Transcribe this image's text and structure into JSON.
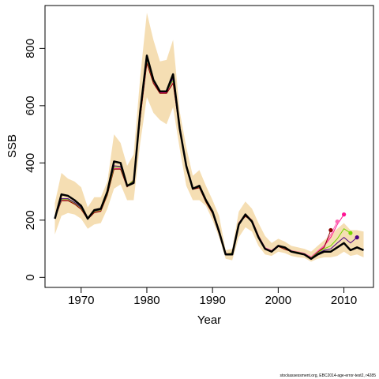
{
  "footer": "stockassessment.org, EBC2014-age-error-test2, r4285",
  "chart_data": {
    "type": "line",
    "title": "",
    "xlabel": "Year",
    "ylabel": "SSB",
    "xlim": [
      1964.5,
      2014.5
    ],
    "ylim": [
      -35,
      950
    ],
    "xticks": [
      1970,
      1980,
      1990,
      2000,
      2010
    ],
    "yticks": [
      0,
      200,
      400,
      600,
      800
    ],
    "grid": false,
    "legend": "none",
    "colors": {
      "ci_band": "#f5deb3",
      "main": "#000000",
      "retro": [
        "#ff1493",
        "#ff69b4",
        "#8b0000",
        "#76d700",
        "#4b0082"
      ]
    },
    "years": [
      1966,
      1967,
      1968,
      1969,
      1970,
      1971,
      1972,
      1973,
      1974,
      1975,
      1976,
      1977,
      1978,
      1979,
      1980,
      1981,
      1982,
      1983,
      1984,
      1985,
      1986,
      1987,
      1988,
      1989,
      1990,
      1991,
      1992,
      1993,
      1994,
      1995,
      1996,
      1997,
      1998,
      1999,
      2000,
      2001,
      2002,
      2003,
      2004,
      2005,
      2006,
      2007,
      2008,
      2009,
      2010,
      2011,
      2012,
      2013
    ],
    "confidence_band": {
      "lower": [
        150,
        215,
        225,
        220,
        205,
        170,
        185,
        190,
        240,
        310,
        325,
        270,
        270,
        470,
        630,
        575,
        550,
        535,
        595,
        450,
        320,
        270,
        270,
        250,
        200,
        140,
        65,
        60,
        140,
        175,
        160,
        110,
        80,
        75,
        90,
        85,
        75,
        70,
        68,
        55,
        65,
        70,
        70,
        75,
        90,
        75,
        80,
        70
      ],
      "upper": [
        260,
        365,
        345,
        335,
        315,
        245,
        280,
        280,
        335,
        500,
        470,
        390,
        430,
        700,
        925,
        830,
        755,
        760,
        830,
        580,
        455,
        355,
        375,
        320,
        270,
        215,
        95,
        100,
        230,
        265,
        240,
        190,
        145,
        120,
        135,
        125,
        110,
        105,
        100,
        90,
        110,
        130,
        150,
        170,
        190,
        165,
        165,
        160
      ]
    },
    "series": [
      {
        "role": "final",
        "color": "#000000",
        "values": [
          205,
          290,
          285,
          270,
          250,
          205,
          235,
          240,
          300,
          405,
          400,
          320,
          330,
          580,
          775,
          690,
          650,
          650,
          710,
          520,
          390,
          310,
          320,
          270,
          230,
          160,
          80,
          80,
          185,
          220,
          195,
          140,
          100,
          90,
          110,
          105,
          90,
          85,
          80,
          65,
          80,
          90,
          90,
          105,
          120,
          95,
          105,
          95
        ]
      },
      {
        "role": "retro",
        "color": "#ff1493",
        "end_year": 2010,
        "values": [
          208,
          270,
          270,
          258,
          240,
          205,
          228,
          233,
          290,
          380,
          380,
          318,
          340,
          560,
          750,
          680,
          645,
          645,
          680,
          520,
          385,
          310,
          315,
          265,
          225,
          155,
          82,
          85,
          190,
          215,
          200,
          145,
          102,
          92,
          110,
          100,
          92,
          88,
          82,
          70,
          90,
          110,
          140,
          185,
          220
        ]
      },
      {
        "role": "retro",
        "color": "#ff69b4",
        "end_year": 2009,
        "values": [
          210,
          272,
          272,
          260,
          242,
          207,
          230,
          235,
          292,
          385,
          383,
          320,
          342,
          563,
          755,
          683,
          648,
          648,
          685,
          523,
          388,
          312,
          317,
          267,
          227,
          157,
          83,
          86,
          192,
          218,
          202,
          147,
          104,
          94,
          112,
          102,
          94,
          90,
          84,
          72,
          92,
          112,
          150,
          195
        ]
      },
      {
        "role": "retro",
        "color": "#8b0000",
        "end_year": 2008,
        "values": [
          206,
          268,
          268,
          256,
          238,
          203,
          226,
          231,
          288,
          378,
          378,
          316,
          338,
          558,
          748,
          678,
          643,
          643,
          678,
          518,
          383,
          308,
          313,
          263,
          223,
          153,
          81,
          84,
          188,
          213,
          198,
          143,
          100,
          90,
          108,
          98,
          90,
          86,
          80,
          68,
          88,
          105,
          165
        ]
      },
      {
        "role": "retro",
        "color": "#76d700",
        "end_year": 2011,
        "values": [
          207,
          272,
          272,
          260,
          242,
          206,
          230,
          235,
          292,
          385,
          385,
          320,
          340,
          565,
          760,
          685,
          650,
          650,
          688,
          522,
          387,
          311,
          316,
          266,
          226,
          156,
          82,
          85,
          190,
          216,
          200,
          145,
          101,
          91,
          110,
          101,
          92,
          88,
          82,
          68,
          86,
          100,
          110,
          135,
          170,
          155
        ]
      },
      {
        "role": "retro",
        "color": "#4b0082",
        "end_year": 2012,
        "values": [
          205,
          275,
          275,
          262,
          244,
          206,
          232,
          237,
          295,
          390,
          388,
          320,
          335,
          570,
          765,
          688,
          652,
          652,
          695,
          521,
          388,
          310,
          318,
          268,
          228,
          158,
          81,
          83,
          187,
          218,
          198,
          142,
          100,
          90,
          110,
          102,
          91,
          86,
          81,
          66,
          84,
          95,
          100,
          120,
          140,
          120,
          140
        ]
      }
    ],
    "endpoints": [
      {
        "year": 2008,
        "value": 165,
        "color": "#8b0000"
      },
      {
        "year": 2009,
        "value": 195,
        "color": "#ff69b4"
      },
      {
        "year": 2010,
        "value": 220,
        "color": "#ff1493"
      },
      {
        "year": 2011,
        "value": 155,
        "color": "#76d700"
      },
      {
        "year": 2012,
        "value": 140,
        "color": "#4b0082"
      }
    ]
  }
}
